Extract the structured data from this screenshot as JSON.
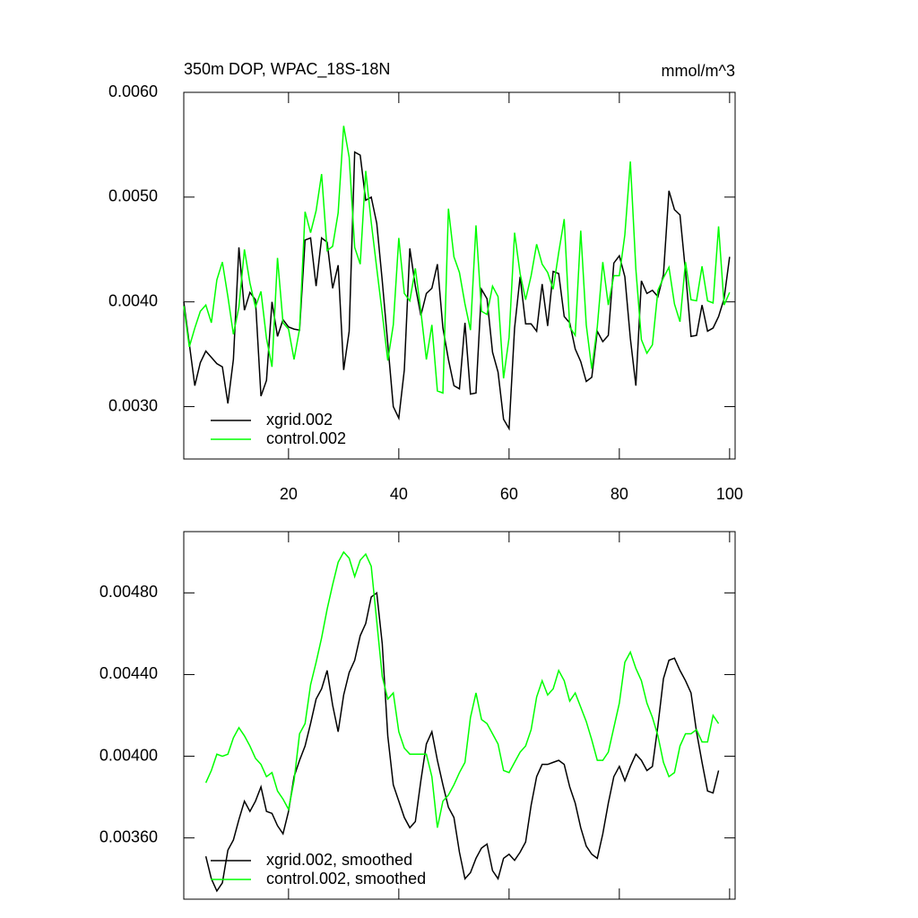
{
  "chart_data": [
    {
      "type": "line",
      "title": "350m DOP, WPAC_18S-18N",
      "units": "mmol/m^3",
      "x": [
        1,
        2,
        3,
        4,
        5,
        6,
        7,
        8,
        9,
        10,
        11,
        12,
        13,
        14,
        15,
        16,
        17,
        18,
        19,
        20,
        21,
        22,
        23,
        24,
        25,
        26,
        27,
        28,
        29,
        30,
        31,
        32,
        33,
        34,
        35,
        36,
        37,
        38,
        39,
        40,
        41,
        42,
        43,
        44,
        45,
        46,
        47,
        48,
        49,
        50,
        51,
        52,
        53,
        54,
        55,
        56,
        57,
        58,
        59,
        60,
        61,
        62,
        63,
        64,
        65,
        66,
        67,
        68,
        69,
        70,
        71,
        72,
        73,
        74,
        75,
        76,
        77,
        78,
        79,
        80,
        81,
        82,
        83,
        84,
        85,
        86,
        87,
        88,
        89,
        90,
        91,
        92,
        93,
        94,
        95,
        96,
        97,
        98,
        99,
        100
      ],
      "series": [
        {
          "name": "xgrid.002",
          "color": "#000000",
          "values": [
            0.004,
            0.0036,
            0.0032,
            0.00342,
            0.00353,
            0.00347,
            0.00341,
            0.00338,
            0.00303,
            0.00345,
            0.00452,
            0.00392,
            0.00409,
            0.00402,
            0.0031,
            0.00325,
            0.004,
            0.00367,
            0.00383,
            0.00376,
            0.00374,
            0.00373,
            0.00459,
            0.00461,
            0.00415,
            0.00461,
            0.00457,
            0.00413,
            0.00435,
            0.00335,
            0.00372,
            0.00543,
            0.0054,
            0.00497,
            0.005,
            0.00475,
            0.0042,
            0.0036,
            0.003,
            0.00289,
            0.00335,
            0.00451,
            0.00415,
            0.00387,
            0.00408,
            0.00413,
            0.00436,
            0.00375,
            0.00345,
            0.0032,
            0.00317,
            0.0038,
            0.00312,
            0.00313,
            0.00412,
            0.00403,
            0.00352,
            0.00333,
            0.00288,
            0.00279,
            0.00375,
            0.00424,
            0.00379,
            0.00379,
            0.00372,
            0.00417,
            0.00377,
            0.00429,
            0.00427,
            0.00386,
            0.0038,
            0.00355,
            0.00343,
            0.00324,
            0.00328,
            0.00372,
            0.00362,
            0.00368,
            0.00437,
            0.00444,
            0.00424,
            0.00365,
            0.0032,
            0.0042,
            0.00408,
            0.00411,
            0.00405,
            0.00426,
            0.00506,
            0.00488,
            0.00483,
            0.00429,
            0.00367,
            0.00368,
            0.00397,
            0.00372,
            0.00375,
            0.00386,
            0.00403,
            0.00443
          ]
        },
        {
          "name": "control.002",
          "color": "#00ff00",
          "values": [
            0.00396,
            0.00357,
            0.00375,
            0.00391,
            0.00397,
            0.0038,
            0.00421,
            0.00438,
            0.00405,
            0.00369,
            0.00395,
            0.0045,
            0.00418,
            0.00395,
            0.0041,
            0.00365,
            0.00338,
            0.00442,
            0.0038,
            0.00374,
            0.00345,
            0.00374,
            0.00486,
            0.00466,
            0.00487,
            0.00522,
            0.00449,
            0.00453,
            0.00485,
            0.00568,
            0.00538,
            0.00452,
            0.00436,
            0.00525,
            0.00476,
            0.00432,
            0.00389,
            0.00344,
            0.00378,
            0.00461,
            0.00408,
            0.00401,
            0.00432,
            0.00391,
            0.00345,
            0.00378,
            0.00315,
            0.00313,
            0.00489,
            0.00443,
            0.00428,
            0.00398,
            0.00373,
            0.00473,
            0.00391,
            0.00388,
            0.00415,
            0.00405,
            0.00327,
            0.00366,
            0.00466,
            0.00427,
            0.00402,
            0.00425,
            0.00455,
            0.00436,
            0.00428,
            0.00412,
            0.00447,
            0.00479,
            0.00376,
            0.00368,
            0.00468,
            0.00378,
            0.00336,
            0.00376,
            0.00438,
            0.00397,
            0.00425,
            0.00425,
            0.00464,
            0.00534,
            0.00431,
            0.00364,
            0.00351,
            0.00359,
            0.00411,
            0.00423,
            0.00433,
            0.00398,
            0.00381,
            0.00438,
            0.00402,
            0.00401,
            0.00434,
            0.00401,
            0.00399,
            0.00472,
            0.00397,
            0.00409
          ]
        }
      ],
      "xlim": [
        1,
        101
      ],
      "xticks": [
        20,
        40,
        60,
        80,
        100
      ],
      "show_xtick_labels": true,
      "ylim": [
        0.0025,
        0.006
      ],
      "yticks": [
        {
          "value": 0.003,
          "label": "0.0030"
        },
        {
          "value": 0.004,
          "label": "0.0040"
        },
        {
          "value": 0.005,
          "label": "0.0050"
        },
        {
          "value": 0.006,
          "label": "0.0060"
        }
      ],
      "legend": "lower left"
    },
    {
      "type": "line",
      "x": [
        5,
        6,
        7,
        8,
        9,
        10,
        11,
        12,
        13,
        14,
        15,
        16,
        17,
        18,
        19,
        20,
        21,
        22,
        23,
        24,
        25,
        26,
        27,
        28,
        29,
        30,
        31,
        32,
        33,
        34,
        35,
        36,
        37,
        38,
        39,
        40,
        41,
        42,
        43,
        44,
        45,
        46,
        47,
        48,
        49,
        50,
        51,
        52,
        53,
        54,
        55,
        56,
        57,
        58,
        59,
        60,
        61,
        62,
        63,
        64,
        65,
        66,
        67,
        68,
        69,
        70,
        71,
        72,
        73,
        74,
        75,
        76,
        77,
        78,
        79,
        80,
        81,
        82,
        83,
        84,
        85,
        86,
        87,
        88,
        89,
        90,
        91,
        92,
        93,
        94,
        95,
        96,
        97,
        98
      ],
      "series": [
        {
          "name": "xgrid.002, smoothed",
          "color": "#000000",
          "values": [
            0.00351,
            0.0034,
            0.00334,
            0.00338,
            0.00354,
            0.00359,
            0.00369,
            0.00378,
            0.00373,
            0.00378,
            0.00385,
            0.00373,
            0.00372,
            0.00366,
            0.00362,
            0.00373,
            0.0039,
            0.00398,
            0.00405,
            0.00416,
            0.00428,
            0.00433,
            0.00442,
            0.00425,
            0.00412,
            0.0043,
            0.00441,
            0.00447,
            0.00459,
            0.00465,
            0.00478,
            0.0048,
            0.00455,
            0.0041,
            0.00386,
            0.00378,
            0.0037,
            0.00365,
            0.00368,
            0.00388,
            0.00406,
            0.00412,
            0.00398,
            0.00386,
            0.00375,
            0.0037,
            0.00353,
            0.0034,
            0.00343,
            0.0035,
            0.00355,
            0.00357,
            0.00344,
            0.0034,
            0.0035,
            0.00352,
            0.00349,
            0.00353,
            0.00358,
            0.00376,
            0.0039,
            0.00396,
            0.00396,
            0.00397,
            0.00398,
            0.00396,
            0.00385,
            0.00377,
            0.00365,
            0.00356,
            0.00352,
            0.0035,
            0.00362,
            0.00377,
            0.0039,
            0.00395,
            0.00388,
            0.00395,
            0.00401,
            0.00398,
            0.00393,
            0.00395,
            0.00415,
            0.00438,
            0.00447,
            0.00448,
            0.00442,
            0.00437,
            0.00431,
            0.00412,
            0.00397,
            0.00383,
            0.00382,
            0.00393
          ]
        },
        {
          "name": "control.002, smoothed",
          "color": "#00ff00",
          "values": [
            0.00387,
            0.00393,
            0.00401,
            0.004,
            0.00401,
            0.00409,
            0.00414,
            0.0041,
            0.00405,
            0.00399,
            0.00396,
            0.0039,
            0.00392,
            0.00383,
            0.00379,
            0.00374,
            0.00388,
            0.00411,
            0.00416,
            0.00435,
            0.00446,
            0.00458,
            0.00472,
            0.00484,
            0.00495,
            0.005,
            0.00497,
            0.00488,
            0.00496,
            0.00499,
            0.00493,
            0.00466,
            0.00439,
            0.00428,
            0.00431,
            0.00412,
            0.00404,
            0.00401,
            0.00401,
            0.00401,
            0.00401,
            0.0039,
            0.00365,
            0.00378,
            0.00381,
            0.00386,
            0.00392,
            0.00397,
            0.00419,
            0.00431,
            0.00418,
            0.00416,
            0.00411,
            0.00406,
            0.00393,
            0.00392,
            0.00397,
            0.00402,
            0.00405,
            0.00413,
            0.00429,
            0.00437,
            0.0043,
            0.00433,
            0.00442,
            0.00437,
            0.00427,
            0.00431,
            0.00424,
            0.00417,
            0.00408,
            0.00398,
            0.00398,
            0.00402,
            0.00414,
            0.00426,
            0.00446,
            0.00451,
            0.00443,
            0.00437,
            0.00426,
            0.00419,
            0.0041,
            0.00397,
            0.0039,
            0.00392,
            0.00405,
            0.00411,
            0.00411,
            0.00413,
            0.00407,
            0.00407,
            0.0042,
            0.00416
          ]
        }
      ],
      "xlim": [
        1,
        101
      ],
      "xticks": [
        20,
        40,
        60,
        80,
        100
      ],
      "show_xtick_labels": false,
      "ylim": [
        0.0033,
        0.0051
      ],
      "yticks": [
        {
          "value": 0.0036,
          "label": "0.00360"
        },
        {
          "value": 0.004,
          "label": "0.00400"
        },
        {
          "value": 0.0044,
          "label": "0.00440"
        },
        {
          "value": 0.0048,
          "label": "0.00480"
        }
      ],
      "legend": "lower left"
    }
  ]
}
